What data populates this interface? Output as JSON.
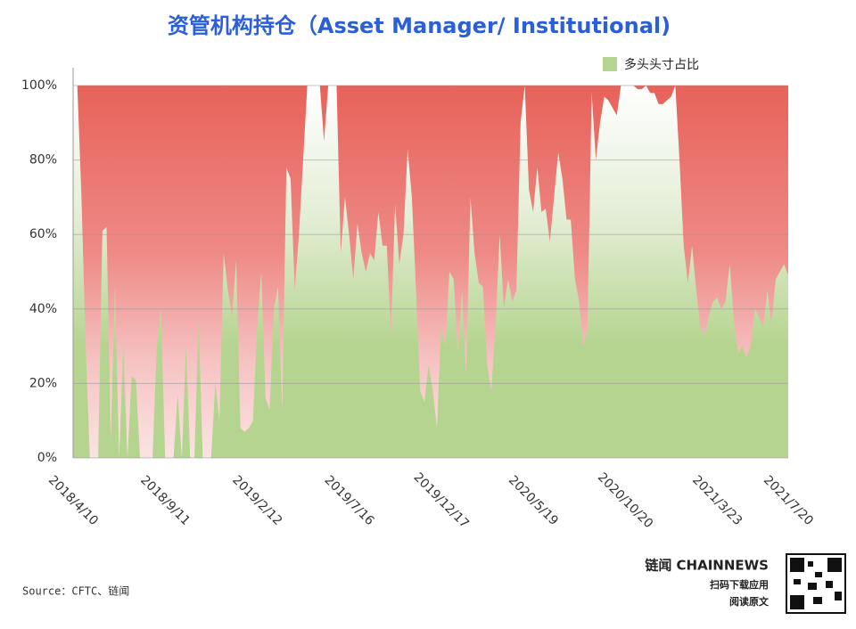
{
  "chart_data": {
    "type": "area",
    "title": "资管机构持仓（Asset Manager/ Institutional)",
    "source": "Source：CFTC、链闻",
    "brand": {
      "name": "链闻 CHAINNEWS",
      "line1": "扫码下载应用",
      "line2": "阅读原文"
    },
    "categories": [
      "2018/4/10",
      null,
      null,
      null,
      null,
      null,
      null,
      null,
      null,
      null,
      null,
      null,
      null,
      null,
      null,
      null,
      null,
      null,
      null,
      null,
      null,
      null,
      "2018/9/11",
      null,
      null,
      null,
      null,
      null,
      null,
      null,
      null,
      null,
      null,
      null,
      null,
      null,
      null,
      null,
      null,
      null,
      null,
      null,
      null,
      null,
      "2019/2/12",
      null,
      null,
      null,
      null,
      null,
      null,
      null,
      null,
      null,
      null,
      null,
      null,
      null,
      null,
      null,
      null,
      null,
      null,
      null,
      null,
      null,
      "2019/7/16",
      null,
      null,
      null,
      null,
      null,
      null,
      null,
      null,
      null,
      null,
      null,
      null,
      null,
      null,
      null,
      null,
      null,
      null,
      null,
      null,
      null,
      "2019/12/17",
      null,
      null,
      null,
      null,
      null,
      null,
      null,
      null,
      null,
      null,
      null,
      null,
      null,
      null,
      null,
      null,
      null,
      null,
      null,
      null,
      null,
      "2020/5/19",
      null,
      null,
      null,
      null,
      null,
      null,
      null,
      null,
      null,
      null,
      null,
      null,
      null,
      null,
      null,
      null,
      null,
      null,
      null,
      null,
      null,
      "2020/10/20",
      null,
      null,
      null,
      null,
      null,
      null,
      null,
      null,
      null,
      null,
      null,
      null,
      null,
      null,
      null,
      null,
      null,
      null,
      null,
      null,
      null,
      "2021/3/23",
      null,
      null,
      null,
      null,
      null,
      null,
      null,
      null,
      null,
      null,
      null,
      null,
      null,
      null,
      null,
      null,
      "2021/7/20"
    ],
    "series": [
      {
        "name": "多头头寸占比",
        "color": "#b5d48f",
        "values": [
          100,
          100,
          70,
          30,
          0,
          0,
          0,
          61,
          62,
          5,
          46,
          0,
          30,
          0,
          22,
          21,
          0,
          0,
          0,
          0,
          30,
          40,
          0,
          0,
          0,
          17,
          0,
          30,
          0,
          0,
          37,
          0,
          0,
          0,
          20,
          10,
          55,
          45,
          38,
          53,
          8,
          7,
          8,
          10,
          35,
          50,
          16,
          13,
          40,
          46,
          13,
          78,
          75,
          45,
          60,
          80,
          100,
          100,
          100,
          100,
          85,
          100,
          100,
          100,
          55,
          70,
          60,
          48,
          63,
          55,
          50,
          55,
          53,
          66,
          57,
          57,
          33,
          68,
          52,
          60,
          83,
          70,
          45,
          18,
          15,
          25,
          18,
          8,
          35,
          30,
          50,
          48,
          28,
          45,
          22,
          70,
          55,
          47,
          46,
          25,
          18,
          35,
          60,
          40,
          48,
          42,
          45,
          90,
          100,
          72,
          66,
          78,
          66,
          67,
          58,
          70,
          82,
          75,
          64,
          64,
          48,
          42,
          30,
          35,
          98,
          80,
          90,
          97,
          96,
          94,
          92,
          100,
          100,
          100,
          100,
          99,
          99,
          100,
          98,
          98,
          95,
          95,
          96,
          97,
          100,
          80,
          57,
          47,
          57,
          45,
          35,
          33,
          38,
          42,
          43,
          40,
          42,
          52,
          37,
          28,
          30,
          27,
          30,
          40,
          38,
          35,
          45,
          36,
          48,
          50,
          52,
          49
        ]
      }
    ],
    "rest_color": "#e8625a",
    "ylim": [
      0,
      100
    ],
    "yticks": [
      {
        "value": 0,
        "label": "0%"
      },
      {
        "value": 20,
        "label": "20%"
      },
      {
        "value": 40,
        "label": "40%"
      },
      {
        "value": 60,
        "label": "60%"
      },
      {
        "value": 80,
        "label": "80%"
      },
      {
        "value": 100,
        "label": "100%"
      }
    ],
    "grid": true,
    "legend": "top-right"
  }
}
